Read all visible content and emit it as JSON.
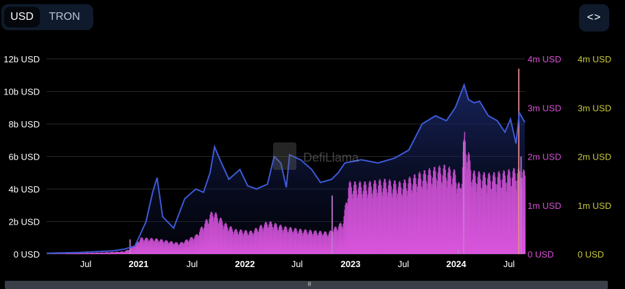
{
  "toggle": {
    "usd_label": "USD",
    "tron_label": "TRON"
  },
  "embed": {
    "icon": "code-brackets-icon",
    "label": "<>"
  },
  "watermark": {
    "text": "DefiLlama"
  },
  "colors": {
    "tvl": "#3d5bd9",
    "fees": "#d94fd6",
    "spike": "#e88a8a",
    "axis_left": "#ffffff",
    "axis_mid": "#d94fd6",
    "axis_right": "#c9c93a"
  },
  "chart_data": {
    "type": "line",
    "x_ticks": [
      "Jul",
      "2021",
      "Jul",
      "2022",
      "Jul",
      "2023",
      "Jul",
      "2024",
      "Jul"
    ],
    "y_left": {
      "ticks": [
        "0 USD",
        "2b USD",
        "4b USD",
        "6b USD",
        "8b USD",
        "10b USD",
        "12b USD"
      ],
      "range": [
        0,
        12
      ]
    },
    "y_mid": {
      "ticks": [
        "0 USD",
        "1m USD",
        "2m USD",
        "3m USD",
        "4m USD"
      ],
      "range": [
        0,
        4
      ]
    },
    "y_right": {
      "ticks": [
        "0 USD",
        "1m USD",
        "2m USD",
        "3m USD",
        "4m USD"
      ],
      "range": [
        0,
        4
      ]
    },
    "grid": true,
    "x_range": [
      2020.3,
      2024.63
    ],
    "series": [
      {
        "axis": "left",
        "kind": "line",
        "points": [
          [
            2020.3,
            0.05
          ],
          [
            2020.6,
            0.1
          ],
          [
            2020.9,
            0.2
          ],
          [
            2021.0,
            0.3
          ],
          [
            2021.1,
            0.5
          ],
          [
            2021.2,
            2.0
          ],
          [
            2021.26,
            3.8
          ],
          [
            2021.3,
            4.7
          ],
          [
            2021.35,
            2.3
          ],
          [
            2021.45,
            1.6
          ],
          [
            2021.55,
            3.4
          ],
          [
            2021.65,
            4.0
          ],
          [
            2021.72,
            3.8
          ],
          [
            2021.78,
            5.0
          ],
          [
            2021.82,
            6.6
          ],
          [
            2021.87,
            5.8
          ],
          [
            2021.95,
            4.6
          ],
          [
            2022.05,
            5.2
          ],
          [
            2022.12,
            4.2
          ],
          [
            2022.2,
            4.0
          ],
          [
            2022.3,
            4.3
          ],
          [
            2022.36,
            6.0
          ],
          [
            2022.42,
            5.6
          ],
          [
            2022.47,
            4.1
          ],
          [
            2022.5,
            6.1
          ],
          [
            2022.6,
            5.8
          ],
          [
            2022.7,
            5.2
          ],
          [
            2022.78,
            4.4
          ],
          [
            2022.88,
            4.6
          ],
          [
            2022.94,
            5.0
          ],
          [
            2023.0,
            5.6
          ],
          [
            2023.15,
            5.8
          ],
          [
            2023.3,
            5.6
          ],
          [
            2023.45,
            5.9
          ],
          [
            2023.58,
            6.4
          ],
          [
            2023.7,
            8.0
          ],
          [
            2023.82,
            8.5
          ],
          [
            2023.92,
            8.2
          ],
          [
            2024.0,
            9.0
          ],
          [
            2024.08,
            10.4
          ],
          [
            2024.12,
            9.5
          ],
          [
            2024.17,
            9.3
          ],
          [
            2024.22,
            9.4
          ],
          [
            2024.3,
            8.5
          ],
          [
            2024.38,
            8.2
          ],
          [
            2024.45,
            7.5
          ],
          [
            2024.5,
            8.3
          ],
          [
            2024.55,
            6.8
          ],
          [
            2024.58,
            8.7
          ],
          [
            2024.63,
            8.1
          ]
        ]
      },
      {
        "axis": "mid",
        "kind": "bar",
        "points": [
          [
            2020.3,
            0.0
          ],
          [
            2020.8,
            0.03
          ],
          [
            2021.0,
            0.05
          ],
          [
            2021.05,
            0.1
          ],
          [
            2021.15,
            0.3
          ],
          [
            2021.3,
            0.28
          ],
          [
            2021.5,
            0.2
          ],
          [
            2021.65,
            0.35
          ],
          [
            2021.8,
            0.8
          ],
          [
            2021.92,
            0.55
          ],
          [
            2022.0,
            0.45
          ],
          [
            2022.15,
            0.42
          ],
          [
            2022.3,
            0.6
          ],
          [
            2022.45,
            0.5
          ],
          [
            2022.6,
            0.45
          ],
          [
            2022.75,
            0.42
          ],
          [
            2022.85,
            0.4
          ],
          [
            2022.98,
            0.6
          ],
          [
            2023.03,
            1.3
          ],
          [
            2023.2,
            1.3
          ],
          [
            2023.35,
            1.35
          ],
          [
            2023.5,
            1.3
          ],
          [
            2023.65,
            1.45
          ],
          [
            2023.78,
            1.55
          ],
          [
            2023.9,
            1.6
          ],
          [
            2024.0,
            1.5
          ],
          [
            2024.04,
            1.2
          ],
          [
            2024.08,
            2.2
          ],
          [
            2024.15,
            1.5
          ],
          [
            2024.3,
            1.45
          ],
          [
            2024.45,
            1.5
          ],
          [
            2024.55,
            1.55
          ],
          [
            2024.63,
            1.5
          ]
        ],
        "spikes": [
          [
            2021.05,
            0.3
          ],
          [
            2022.88,
            1.2
          ],
          [
            2024.02,
            0.1
          ],
          [
            2024.07,
            2.3
          ],
          [
            2024.57,
            3.8
          ],
          [
            2024.59,
            2.0
          ]
        ]
      }
    ]
  }
}
